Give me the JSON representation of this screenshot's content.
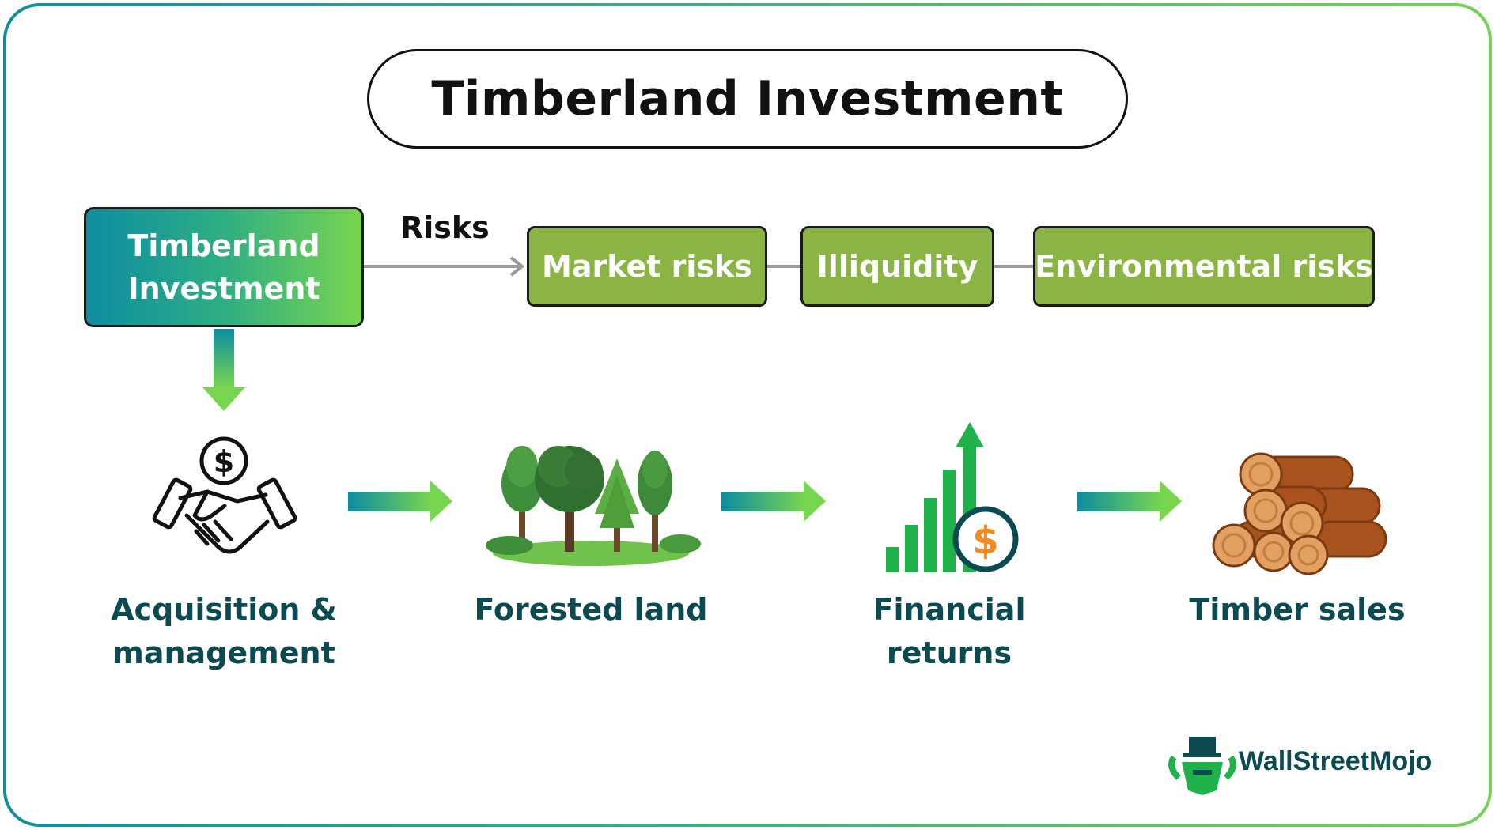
{
  "title": "Timberland Investment",
  "main_node": {
    "label": "Timberland Investment"
  },
  "risks": {
    "label": "Risks",
    "items": [
      "Market risks",
      "Illiquidity",
      "Environmental risks"
    ]
  },
  "steps": [
    {
      "label": "Acquisition & management",
      "icon": "handshake-dollar-icon"
    },
    {
      "label": "Forested land",
      "icon": "forest-trees-icon"
    },
    {
      "label": "Financial returns",
      "icon": "bar-chart-dollar-icon"
    },
    {
      "label": "Timber sales",
      "icon": "log-pile-icon"
    }
  ],
  "brand": {
    "name": "WallStreetMojo",
    "logo": "wallstreetmojo-bull-logo"
  },
  "colors": {
    "teal": "#0d8da1",
    "green": "#78d54f",
    "risk_box": "#8ab443",
    "step_text": "#0c4a52"
  }
}
